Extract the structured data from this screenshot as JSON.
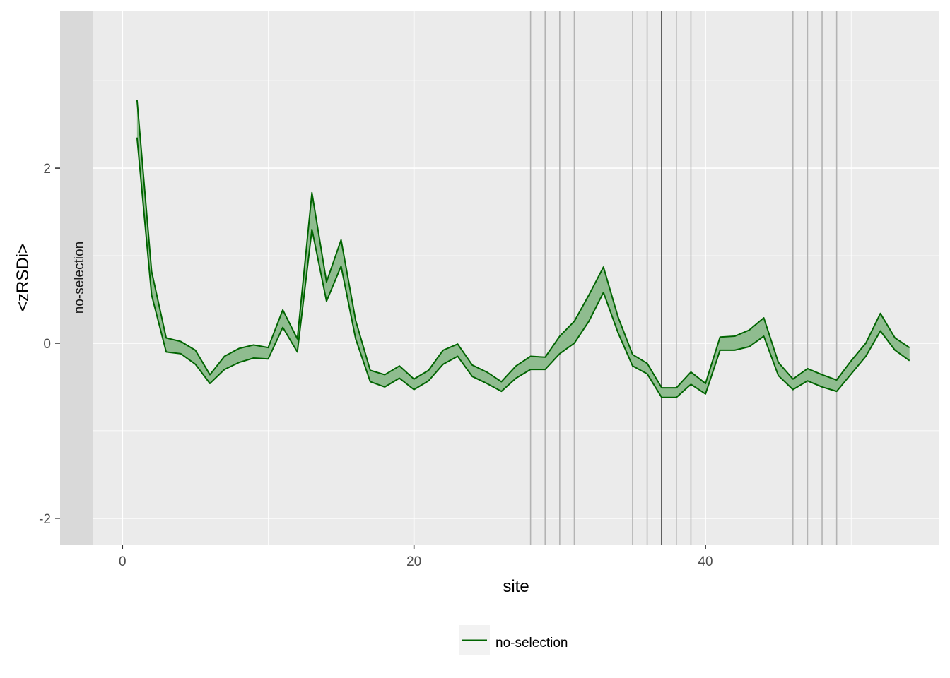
{
  "chart_data": {
    "type": "line",
    "xlabel": "site",
    "ylabel": "<zRSDi>",
    "xlim": [
      -2,
      56
    ],
    "ylim": [
      -2.3,
      3.8
    ],
    "x_ticks": [
      0,
      20,
      40
    ],
    "x_tick_labels": [
      "0",
      "20",
      "40"
    ],
    "y_ticks": [
      -2,
      0,
      2
    ],
    "y_tick_labels": [
      "-2",
      "0",
      "2"
    ],
    "grid": true,
    "facet_label": "no-selection",
    "legend_position": "bottom",
    "colors": {
      "line": "#006400",
      "ribbon": "#8fbc8f",
      "panel": "#ebebeb",
      "strip": "#d9d9d9",
      "grid": "#ffffff",
      "vline_grey": "#b3b3b3",
      "vline_black": "#000000"
    },
    "vlines_grey": [
      28,
      29,
      30,
      31,
      35,
      36,
      38,
      39,
      46,
      47,
      48,
      49
    ],
    "vline_black": [
      37
    ],
    "series": [
      {
        "name": "no-selection",
        "x": [
          1,
          2,
          3,
          4,
          5,
          6,
          7,
          8,
          9,
          10,
          11,
          12,
          13,
          14,
          15,
          16,
          17,
          18,
          19,
          20,
          21,
          22,
          23,
          24,
          25,
          26,
          27,
          28,
          29,
          30,
          31,
          32,
          33,
          34,
          35,
          36,
          37,
          38,
          39,
          40,
          41,
          42,
          43,
          44,
          45,
          46,
          47,
          48,
          49,
          50,
          51,
          52,
          53,
          54
        ],
        "lower": [
          2.35,
          0.55,
          -0.1,
          -0.12,
          -0.24,
          -0.46,
          -0.3,
          -0.22,
          -0.17,
          -0.18,
          0.18,
          -0.1,
          1.3,
          0.48,
          0.88,
          0.05,
          -0.44,
          -0.5,
          -0.4,
          -0.53,
          -0.43,
          -0.24,
          -0.15,
          -0.38,
          -0.46,
          -0.55,
          -0.4,
          -0.3,
          -0.3,
          -0.12,
          0.0,
          0.25,
          0.58,
          0.12,
          -0.26,
          -0.35,
          -0.62,
          -0.62,
          -0.47,
          -0.58,
          -0.08,
          -0.08,
          -0.04,
          0.08,
          -0.37,
          -0.53,
          -0.43,
          -0.5,
          -0.55,
          -0.35,
          -0.15,
          0.14,
          -0.08,
          -0.2
        ],
        "upper": [
          2.78,
          0.82,
          0.06,
          0.02,
          -0.08,
          -0.36,
          -0.15,
          -0.06,
          -0.02,
          -0.05,
          0.38,
          0.05,
          1.72,
          0.7,
          1.18,
          0.26,
          -0.31,
          -0.36,
          -0.26,
          -0.41,
          -0.31,
          -0.08,
          -0.01,
          -0.25,
          -0.33,
          -0.44,
          -0.26,
          -0.15,
          -0.16,
          0.08,
          0.25,
          0.55,
          0.87,
          0.3,
          -0.13,
          -0.23,
          -0.51,
          -0.51,
          -0.33,
          -0.46,
          0.07,
          0.08,
          0.15,
          0.29,
          -0.22,
          -0.41,
          -0.29,
          -0.36,
          -0.42,
          -0.2,
          0.0,
          0.34,
          0.06,
          -0.05
        ]
      }
    ]
  }
}
